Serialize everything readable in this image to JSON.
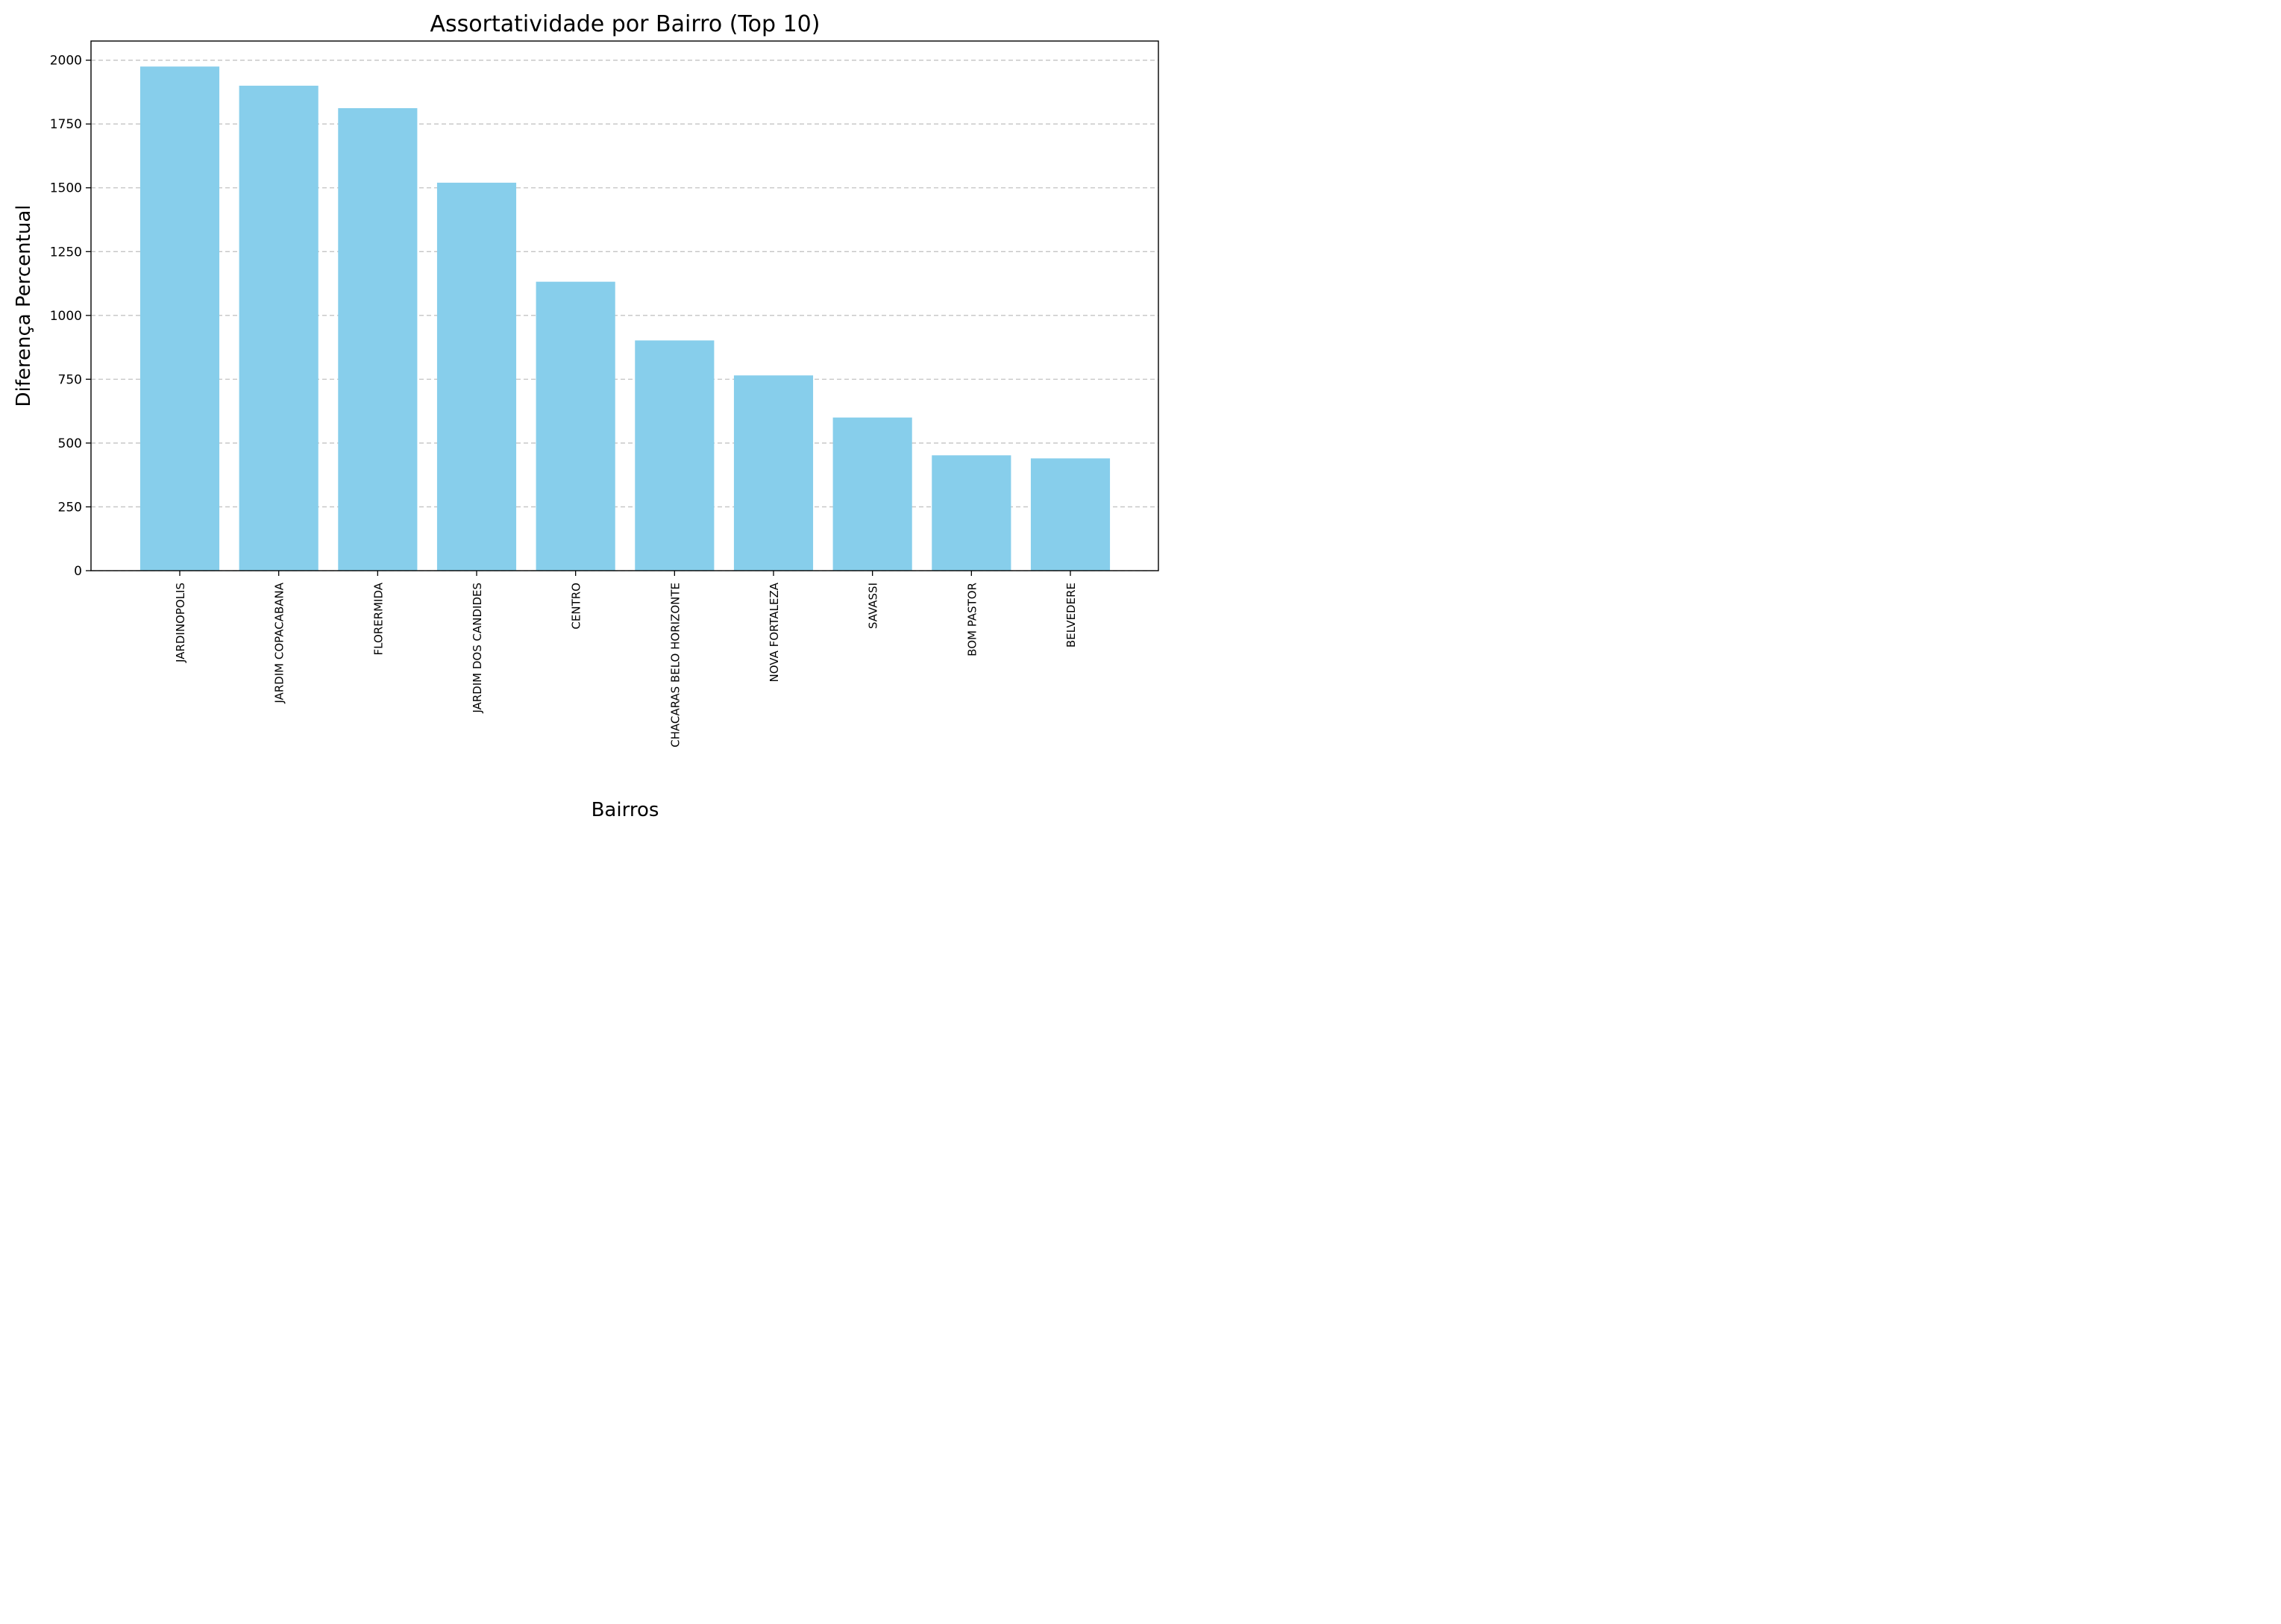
{
  "colors": {
    "bar": "#87CEEB",
    "grid": "#c4c4c4",
    "axis": "#000000",
    "background": "#ffffff"
  },
  "chart_data": {
    "type": "bar",
    "title": "Assortatividade por Bairro (Top 10)",
    "xlabel": "Bairros",
    "ylabel": "Diferença Percentual",
    "categories": [
      "JARDINOPOLIS",
      "JARDIM COPACABANA",
      "FLORERMIDA",
      "JARDIM DOS CANDIDES",
      "CENTRO",
      "CHACARAS BELO HORIZONTE",
      "NOVA FORTALEZA",
      "SAVASSI",
      "BOM PASTOR",
      "BELVEDERE"
    ],
    "values": [
      1975,
      1900,
      1812,
      1520,
      1132,
      902,
      765,
      600,
      452,
      440
    ],
    "ylim": [
      0,
      2075
    ],
    "yticks": [
      0,
      250,
      500,
      750,
      1000,
      1250,
      1500,
      1750,
      2000
    ],
    "grid": "y-dashed",
    "legend": "none"
  }
}
